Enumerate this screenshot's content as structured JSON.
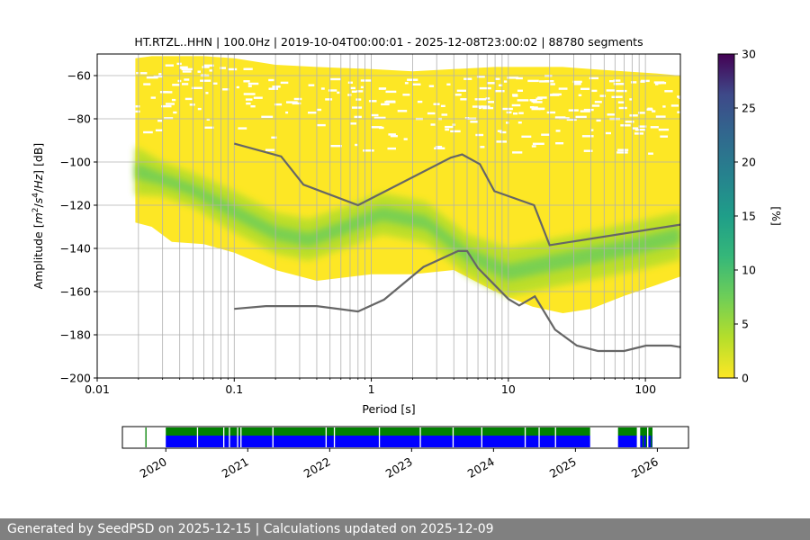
{
  "chart_data": [
    {
      "type": "heatmap",
      "title": "HT.RTZL..HHN | 100.0Hz | 2019-10-04T00:00:01 - 2025-12-08T23:00:02 | 88780 segments",
      "xlabel": "Period [s]",
      "ylabel": "Amplitude [m²/s⁴/Hz] [dB]",
      "x_scale": "log",
      "xlim": [
        0.01,
        180
      ],
      "ylim": [
        -200,
        -50
      ],
      "x_tick_labels": [
        "0.01",
        "0.1",
        "1",
        "10",
        "100"
      ],
      "x_ticks": [
        0.01,
        0.1,
        1,
        10,
        100
      ],
      "y_ticks": [
        -200,
        -180,
        -160,
        -140,
        -120,
        -100,
        -80,
        -60
      ],
      "y_tick_labels": [
        "−200",
        "−180",
        "−160",
        "−140",
        "−120",
        "−100",
        "−80",
        "−60"
      ],
      "grid": true,
      "colorbar": {
        "label": "[%]",
        "range": [
          0,
          30
        ],
        "ticks": [
          0,
          5,
          10,
          15,
          20,
          25,
          30
        ],
        "tick_labels": [
          "0",
          "5",
          "10",
          "15",
          "20",
          "25",
          "30"
        ],
        "colormap": "viridis"
      },
      "envelope": {
        "period_min": 0.019,
        "period_max": 180,
        "points": [
          {
            "x": 0.019,
            "top": -52,
            "bottom": -128
          },
          {
            "x": 0.025,
            "top": -51,
            "bottom": -130
          },
          {
            "x": 0.035,
            "top": -51,
            "bottom": -137
          },
          {
            "x": 0.06,
            "top": -51,
            "bottom": -138
          },
          {
            "x": 0.1,
            "top": -52,
            "bottom": -142
          },
          {
            "x": 0.2,
            "top": -55,
            "bottom": -150
          },
          {
            "x": 0.4,
            "top": -56,
            "bottom": -155
          },
          {
            "x": 1,
            "top": -57,
            "bottom": -152
          },
          {
            "x": 2,
            "top": -58,
            "bottom": -152
          },
          {
            "x": 4,
            "top": -57,
            "bottom": -150
          },
          {
            "x": 8,
            "top": -56,
            "bottom": -160
          },
          {
            "x": 15,
            "top": -56,
            "bottom": -167
          },
          {
            "x": 25,
            "top": -56,
            "bottom": -170
          },
          {
            "x": 40,
            "top": -57,
            "bottom": -168
          },
          {
            "x": 70,
            "top": -58,
            "bottom": -162
          },
          {
            "x": 120,
            "top": -59,
            "bottom": -157
          },
          {
            "x": 180,
            "top": -60,
            "bottom": -153
          }
        ]
      },
      "mode_curve": [
        {
          "x": 0.019,
          "y": -104,
          "spread": 7
        },
        {
          "x": 0.03,
          "y": -108,
          "spread": 5
        },
        {
          "x": 0.05,
          "y": -113,
          "spread": 5
        },
        {
          "x": 0.1,
          "y": -123,
          "spread": 6
        },
        {
          "x": 0.2,
          "y": -133,
          "spread": 6
        },
        {
          "x": 0.35,
          "y": -136,
          "spread": 6
        },
        {
          "x": 0.6,
          "y": -131,
          "spread": 6
        },
        {
          "x": 1.2,
          "y": -124,
          "spread": 6
        },
        {
          "x": 2.5,
          "y": -128,
          "spread": 6
        },
        {
          "x": 5,
          "y": -143,
          "spread": 6
        },
        {
          "x": 10,
          "y": -151,
          "spread": 7
        },
        {
          "x": 20,
          "y": -147,
          "spread": 7
        },
        {
          "x": 50,
          "y": -142,
          "spread": 7
        },
        {
          "x": 100,
          "y": -138,
          "spread": 7
        },
        {
          "x": 180,
          "y": -134,
          "spread": 7
        }
      ],
      "series": [
        {
          "x": [
            0.1,
            0.22,
            0.32,
            0.8,
            3.8,
            4.6,
            6.2,
            7.9,
            15.4,
            20,
            180
          ],
          "y": [
            -91.5,
            -97.4,
            -110.5,
            -120,
            -98,
            -96.5,
            -101,
            -113.5,
            -120,
            -138.5,
            -129
          ]
        },
        {
          "x": [
            0.1,
            0.17,
            0.4,
            0.8,
            1.24,
            2.4,
            4.3,
            5,
            6,
            10,
            12,
            15.6,
            21.9,
            31.6,
            45,
            70,
            101,
            154,
            180
          ],
          "y": [
            -168,
            -166.7,
            -166.7,
            -169.2,
            -163.7,
            -148.6,
            -141.2,
            -141.2,
            -149.1,
            -163.4,
            -166.4,
            -162.2,
            -177.6,
            -185,
            -187.5,
            -187.5,
            -185,
            -185,
            -185.7
          ]
        }
      ]
    },
    {
      "type": "timeline",
      "x_tick_labels": [
        "2020",
        "2021",
        "2022",
        "2023",
        "2024",
        "2025",
        "2026"
      ],
      "x_ticks": [
        2020,
        2021,
        2022,
        2023,
        2024,
        2025,
        2026
      ],
      "xlim": [
        2019.47,
        2026.38
      ],
      "available_colors": [
        "#008000",
        "#0000ff"
      ],
      "coverage_spans": [
        [
          2020.0,
          2025.18
        ],
        [
          2025.52,
          2025.75
        ],
        [
          2025.79,
          2025.87
        ],
        [
          2025.89,
          2025.94
        ]
      ],
      "gaps": [
        2020.38,
        2020.7,
        2020.77,
        2020.87,
        2020.91,
        2021.3,
        2021.95,
        2022.05,
        2022.6,
        2023.1,
        2023.5,
        2023.85,
        2024.38,
        2024.55,
        2024.75
      ],
      "isolated_marks": [
        2019.75,
        2025.82,
        2025.86,
        2025.92
      ]
    }
  ],
  "footer": {
    "text": "Generated by SeedPSD on 2025-12-15 | Calculations updated on 2025-12-09"
  }
}
